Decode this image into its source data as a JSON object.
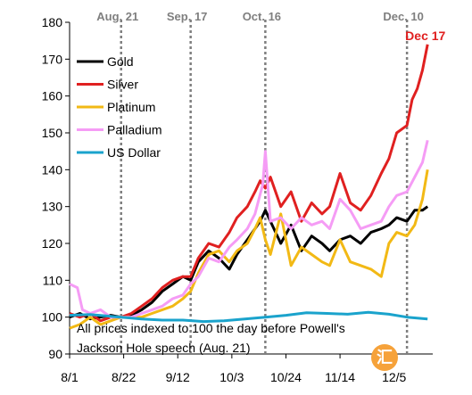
{
  "chart_data": {
    "type": "line",
    "ylim": [
      90,
      180
    ],
    "yticks": [
      90,
      100,
      110,
      120,
      130,
      140,
      150,
      160,
      170,
      180
    ],
    "xlim": [
      "2023-08-01",
      "2023-12-20"
    ],
    "xticks": [
      {
        "date": "2023-08-01",
        "label": "8/1"
      },
      {
        "date": "2023-08-22",
        "label": "8/22"
      },
      {
        "date": "2023-09-12",
        "label": "9/12"
      },
      {
        "date": "2023-10-03",
        "label": "10/3"
      },
      {
        "date": "2023-10-24",
        "label": "10/24"
      },
      {
        "date": "2023-11-14",
        "label": "11/14"
      },
      {
        "date": "2023-12-05",
        "label": "12/5"
      }
    ],
    "events": [
      {
        "date": "2023-08-21",
        "label": "Aug. 21",
        "color": "#7f7f7f"
      },
      {
        "date": "2023-09-17",
        "label": "Sep. 17",
        "color": "#7f7f7f"
      },
      {
        "date": "2023-10-16",
        "label": "Oct. 16",
        "color": "#7f7f7f"
      },
      {
        "date": "2023-12-10",
        "label": "Dec. 10",
        "color": "#7f7f7f"
      },
      {
        "date": "2023-12-17",
        "label": "Dec 17",
        "color": "#e02020"
      }
    ],
    "annotation": "All prices indexed to 100 the day before Powell's Jackson Hole speech (Aug. 21)",
    "legend_position": "top-left",
    "grid": false,
    "series": [
      {
        "name": "Gold",
        "color": "#000000",
        "x": [
          "2023-08-01",
          "2023-08-05",
          "2023-08-09",
          "2023-08-13",
          "2023-08-17",
          "2023-08-21",
          "2023-08-25",
          "2023-08-29",
          "2023-09-02",
          "2023-09-06",
          "2023-09-10",
          "2023-09-14",
          "2023-09-17",
          "2023-09-20",
          "2023-09-24",
          "2023-09-28",
          "2023-10-02",
          "2023-10-05",
          "2023-10-09",
          "2023-10-12",
          "2023-10-14",
          "2023-10-16",
          "2023-10-18",
          "2023-10-22",
          "2023-10-26",
          "2023-10-30",
          "2023-11-03",
          "2023-11-07",
          "2023-11-10",
          "2023-11-14",
          "2023-11-18",
          "2023-11-22",
          "2023-11-26",
          "2023-11-30",
          "2023-12-03",
          "2023-12-06",
          "2023-12-10",
          "2023-12-13",
          "2023-12-16",
          "2023-12-18"
        ],
        "y": [
          100,
          101,
          99.5,
          100,
          100.5,
          100,
          100.5,
          102,
          104,
          107,
          109,
          111,
          110,
          115,
          118,
          116,
          113,
          117,
          121,
          124,
          126,
          129,
          126,
          120,
          125,
          118,
          122,
          120,
          118,
          121,
          122,
          120,
          123,
          124,
          125,
          127,
          126,
          129,
          129,
          130
        ]
      },
      {
        "name": "Silver",
        "color": "#e02020",
        "x": [
          "2023-08-01",
          "2023-08-05",
          "2023-08-09",
          "2023-08-13",
          "2023-08-17",
          "2023-08-21",
          "2023-08-25",
          "2023-08-29",
          "2023-09-02",
          "2023-09-06",
          "2023-09-10",
          "2023-09-14",
          "2023-09-17",
          "2023-09-20",
          "2023-09-24",
          "2023-09-28",
          "2023-10-02",
          "2023-10-05",
          "2023-10-09",
          "2023-10-12",
          "2023-10-14",
          "2023-10-16",
          "2023-10-18",
          "2023-10-22",
          "2023-10-26",
          "2023-10-30",
          "2023-11-03",
          "2023-11-07",
          "2023-11-10",
          "2023-11-14",
          "2023-11-18",
          "2023-11-22",
          "2023-11-26",
          "2023-11-30",
          "2023-12-03",
          "2023-12-06",
          "2023-12-10",
          "2023-12-12",
          "2023-12-14",
          "2023-12-16",
          "2023-12-18"
        ],
        "y": [
          101,
          100,
          101,
          99,
          100,
          100,
          101,
          103,
          105,
          108,
          110,
          111,
          111,
          116,
          120,
          119,
          123,
          127,
          130,
          134,
          137,
          135,
          138,
          130,
          134,
          126,
          131,
          128,
          130,
          139,
          131,
          129,
          133,
          139,
          143,
          150,
          152,
          159,
          162,
          167,
          174
        ]
      },
      {
        "name": "Platinum",
        "color": "#f2b915",
        "x": [
          "2023-08-01",
          "2023-08-05",
          "2023-08-09",
          "2023-08-13",
          "2023-08-17",
          "2023-08-21",
          "2023-08-25",
          "2023-08-29",
          "2023-09-02",
          "2023-09-06",
          "2023-09-10",
          "2023-09-14",
          "2023-09-17",
          "2023-09-20",
          "2023-09-24",
          "2023-09-28",
          "2023-10-02",
          "2023-10-05",
          "2023-10-09",
          "2023-10-12",
          "2023-10-14",
          "2023-10-16",
          "2023-10-18",
          "2023-10-22",
          "2023-10-26",
          "2023-10-30",
          "2023-11-03",
          "2023-11-07",
          "2023-11-10",
          "2023-11-14",
          "2023-11-18",
          "2023-11-22",
          "2023-11-26",
          "2023-11-30",
          "2023-12-03",
          "2023-12-06",
          "2023-12-10",
          "2023-12-13",
          "2023-12-16",
          "2023-12-18"
        ],
        "y": [
          97,
          98,
          100,
          98,
          99,
          100,
          100,
          100,
          101,
          102,
          103,
          105,
          107,
          112,
          117,
          118,
          115,
          118,
          120,
          124,
          127,
          121,
          117,
          128,
          114,
          119,
          117,
          115,
          114,
          121,
          115,
          114,
          113,
          111,
          120,
          123,
          122,
          125,
          132,
          140
        ]
      },
      {
        "name": "Palladium",
        "color": "#f59cf5",
        "x": [
          "2023-08-01",
          "2023-08-04",
          "2023-08-06",
          "2023-08-09",
          "2023-08-13",
          "2023-08-17",
          "2023-08-21",
          "2023-08-25",
          "2023-08-29",
          "2023-09-02",
          "2023-09-06",
          "2023-09-10",
          "2023-09-14",
          "2023-09-17",
          "2023-09-20",
          "2023-09-24",
          "2023-09-28",
          "2023-10-02",
          "2023-10-05",
          "2023-10-09",
          "2023-10-12",
          "2023-10-15",
          "2023-10-16",
          "2023-10-18",
          "2023-10-22",
          "2023-10-26",
          "2023-10-30",
          "2023-11-03",
          "2023-11-07",
          "2023-11-10",
          "2023-11-14",
          "2023-11-18",
          "2023-11-22",
          "2023-11-26",
          "2023-11-30",
          "2023-12-03",
          "2023-12-06",
          "2023-12-10",
          "2023-12-13",
          "2023-12-16",
          "2023-12-18"
        ],
        "y": [
          109,
          108,
          102,
          101,
          102,
          100,
          100,
          100,
          101,
          102,
          103,
          105,
          106,
          109,
          111,
          116,
          115,
          119,
          121,
          124,
          128,
          136,
          145,
          126,
          127,
          124,
          127,
          125,
          126,
          124,
          132,
          129,
          124,
          125,
          126,
          130,
          133,
          134,
          138,
          142,
          148
        ]
      },
      {
        "name": "US Dollar",
        "color": "#1aa3cc",
        "x": [
          "2023-08-01",
          "2023-08-09",
          "2023-08-17",
          "2023-08-21",
          "2023-08-29",
          "2023-09-06",
          "2023-09-14",
          "2023-09-22",
          "2023-09-30",
          "2023-10-08",
          "2023-10-16",
          "2023-10-24",
          "2023-11-01",
          "2023-11-09",
          "2023-11-17",
          "2023-11-25",
          "2023-12-03",
          "2023-12-10",
          "2023-12-18"
        ],
        "y": [
          100.5,
          100.7,
          100.2,
          100,
          99.5,
          99.2,
          99.2,
          98.8,
          99.0,
          99.5,
          100.0,
          100.5,
          101.2,
          101.0,
          100.8,
          101.3,
          100.8,
          100.0,
          99.5
        ]
      }
    ]
  }
}
